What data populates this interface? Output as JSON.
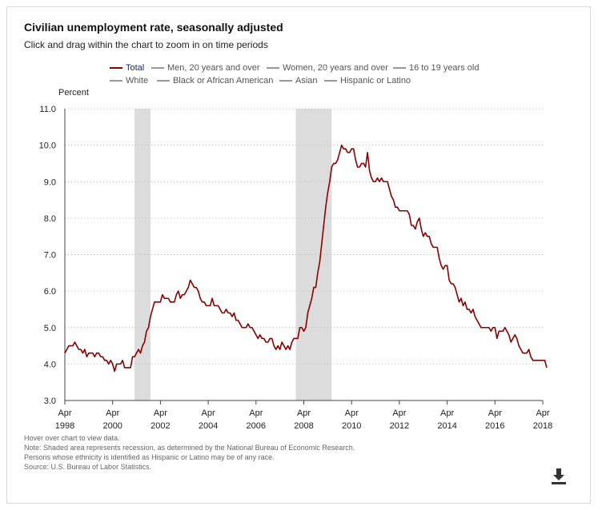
{
  "title": "Civilian unemployment rate, seasonally adjusted",
  "subtitle": "Click and drag within the chart to zoom in on time periods",
  "legend": {
    "row1": [
      "Total",
      "Men, 20 years and over",
      "Women, 20 years and over",
      "16 to 19 years old"
    ],
    "row2": [
      "White",
      "Black or African American",
      "Asian",
      "Hispanic or Latino"
    ],
    "active": "Total"
  },
  "notes": [
    "Hover over chart to view data.",
    "Note: Shaded area represents recession, as determined by the National Bureau of Economic Research.",
    "Persons whose ethnicity is identified as Hispanic or Latino may be of any race.",
    "Source: U.S. Bureau of Labor Statistics."
  ],
  "download_icon": "download-icon",
  "chart_data": {
    "type": "line",
    "ylabel": "Percent",
    "xlabel": "",
    "ylim": [
      3.0,
      11.0
    ],
    "yticks": [
      "3.0",
      "4.0",
      "5.0",
      "6.0",
      "7.0",
      "8.0",
      "9.0",
      "10.0",
      "11.0"
    ],
    "xlim": [
      "1998-04",
      "2018-04"
    ],
    "xticks": [
      {
        "month": "Apr",
        "year": "1998"
      },
      {
        "month": "Apr",
        "year": "2000"
      },
      {
        "month": "Apr",
        "year": "2002"
      },
      {
        "month": "Apr",
        "year": "2004"
      },
      {
        "month": "Apr",
        "year": "2006"
      },
      {
        "month": "Apr",
        "year": "2008"
      },
      {
        "month": "Apr",
        "year": "2010"
      },
      {
        "month": "Apr",
        "year": "2012"
      },
      {
        "month": "Apr",
        "year": "2014"
      },
      {
        "month": "Apr",
        "year": "2016"
      },
      {
        "month": "Apr",
        "year": "2018"
      }
    ],
    "grid": true,
    "legend_position": "top",
    "line_color": "#8b0000",
    "recession_color": "#dcdcdc",
    "recessions": [
      {
        "start": "2001-03",
        "end": "2001-11"
      },
      {
        "start": "2007-12",
        "end": "2009-06"
      }
    ],
    "series": [
      {
        "name": "Total",
        "start": "1998-04",
        "values": [
          4.3,
          4.4,
          4.5,
          4.5,
          4.5,
          4.6,
          4.5,
          4.4,
          4.4,
          4.3,
          4.4,
          4.2,
          4.3,
          4.3,
          4.3,
          4.2,
          4.3,
          4.3,
          4.2,
          4.2,
          4.1,
          4.1,
          4.0,
          4.1,
          4.0,
          3.8,
          4.0,
          4.0,
          4.0,
          4.1,
          3.9,
          3.9,
          3.9,
          3.9,
          4.2,
          4.2,
          4.3,
          4.4,
          4.3,
          4.5,
          4.6,
          4.9,
          5.0,
          5.3,
          5.5,
          5.7,
          5.7,
          5.7,
          5.7,
          5.9,
          5.8,
          5.8,
          5.8,
          5.7,
          5.7,
          5.7,
          5.9,
          6.0,
          5.8,
          5.9,
          5.9,
          6.0,
          6.1,
          6.3,
          6.2,
          6.1,
          6.1,
          6.0,
          5.8,
          5.7,
          5.7,
          5.6,
          5.6,
          5.6,
          5.8,
          5.6,
          5.6,
          5.6,
          5.5,
          5.4,
          5.4,
          5.5,
          5.4,
          5.4,
          5.3,
          5.4,
          5.2,
          5.2,
          5.1,
          5.0,
          5.0,
          5.0,
          5.1,
          5.0,
          5.0,
          4.9,
          4.8,
          4.7,
          4.8,
          4.7,
          4.7,
          4.6,
          4.6,
          4.7,
          4.7,
          4.5,
          4.4,
          4.5,
          4.4,
          4.6,
          4.5,
          4.4,
          4.5,
          4.4,
          4.6,
          4.7,
          4.7,
          4.7,
          5.0,
          5.0,
          4.9,
          5.0,
          5.4,
          5.6,
          5.8,
          6.1,
          6.1,
          6.5,
          6.8,
          7.3,
          7.8,
          8.3,
          8.7,
          9.0,
          9.4,
          9.5,
          9.5,
          9.6,
          9.8,
          10.0,
          9.9,
          9.9,
          9.8,
          9.8,
          9.9,
          9.9,
          9.6,
          9.4,
          9.4,
          9.5,
          9.5,
          9.4,
          9.8,
          9.3,
          9.1,
          9.0,
          9.0,
          9.1,
          9.0,
          9.1,
          9.0,
          9.0,
          9.0,
          8.8,
          8.6,
          8.5,
          8.3,
          8.3,
          8.2,
          8.2,
          8.2,
          8.2,
          8.2,
          8.1,
          7.8,
          7.8,
          7.7,
          7.9,
          8.0,
          7.7,
          7.5,
          7.6,
          7.5,
          7.5,
          7.3,
          7.2,
          7.2,
          7.2,
          6.9,
          6.7,
          6.6,
          6.7,
          6.7,
          6.3,
          6.2,
          6.2,
          6.1,
          5.9,
          5.7,
          5.8,
          5.6,
          5.7,
          5.5,
          5.5,
          5.4,
          5.5,
          5.3,
          5.2,
          5.1,
          5.0,
          5.0,
          5.0,
          5.0,
          5.0,
          4.9,
          5.0,
          5.0,
          4.7,
          4.9,
          4.9,
          4.9,
          5.0,
          4.9,
          4.8,
          4.6,
          4.7,
          4.8,
          4.7,
          4.5,
          4.4,
          4.3,
          4.3,
          4.3,
          4.4,
          4.2,
          4.1,
          4.1,
          4.1,
          4.1,
          4.1,
          4.1,
          4.1,
          3.9
        ]
      }
    ]
  }
}
